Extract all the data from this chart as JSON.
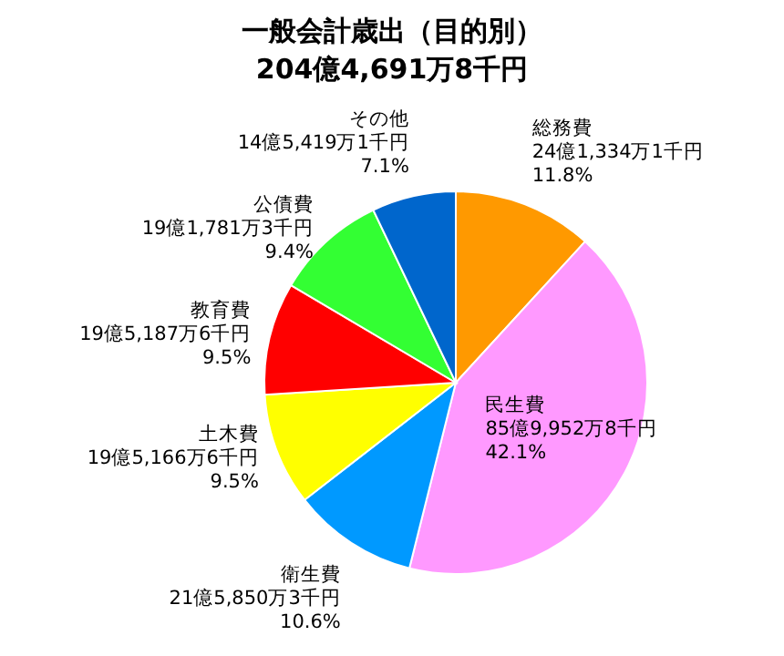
{
  "chart_data": {
    "type": "pie",
    "title": "一般会計歳出（目的別）",
    "subtitle": "204億4,691万8千円",
    "categories": [
      "総務費",
      "民生費",
      "衛生費",
      "土木費",
      "教育費",
      "公債費",
      "その他"
    ],
    "values": [
      11.8,
      42.1,
      10.6,
      9.5,
      9.5,
      9.4,
      7.1
    ],
    "colors": [
      "#ff9900",
      "#ff99ff",
      "#0099ff",
      "#ffff00",
      "#ff0000",
      "#33ff33",
      "#0066cc"
    ],
    "value_labels": [
      "11.8%",
      "42.1%",
      "10.6%",
      "9.5%",
      "9.5%",
      "9.4%",
      "7.1%"
    ],
    "annotations": [
      {
        "text": "24億1,334万1千円",
        "x": "総務費"
      },
      {
        "text": "85億9,952万8千円",
        "x": "民生費"
      },
      {
        "text": "21億5,850万3千円",
        "x": "衛生費"
      },
      {
        "text": "19億5,166万6千円",
        "x": "土木費"
      },
      {
        "text": "19億5,187万6千円",
        "x": "教育費"
      },
      {
        "text": "19億1,781万3千円",
        "x": "公債費"
      },
      {
        "text": "14億5,419万1千円",
        "x": "その他"
      }
    ]
  }
}
